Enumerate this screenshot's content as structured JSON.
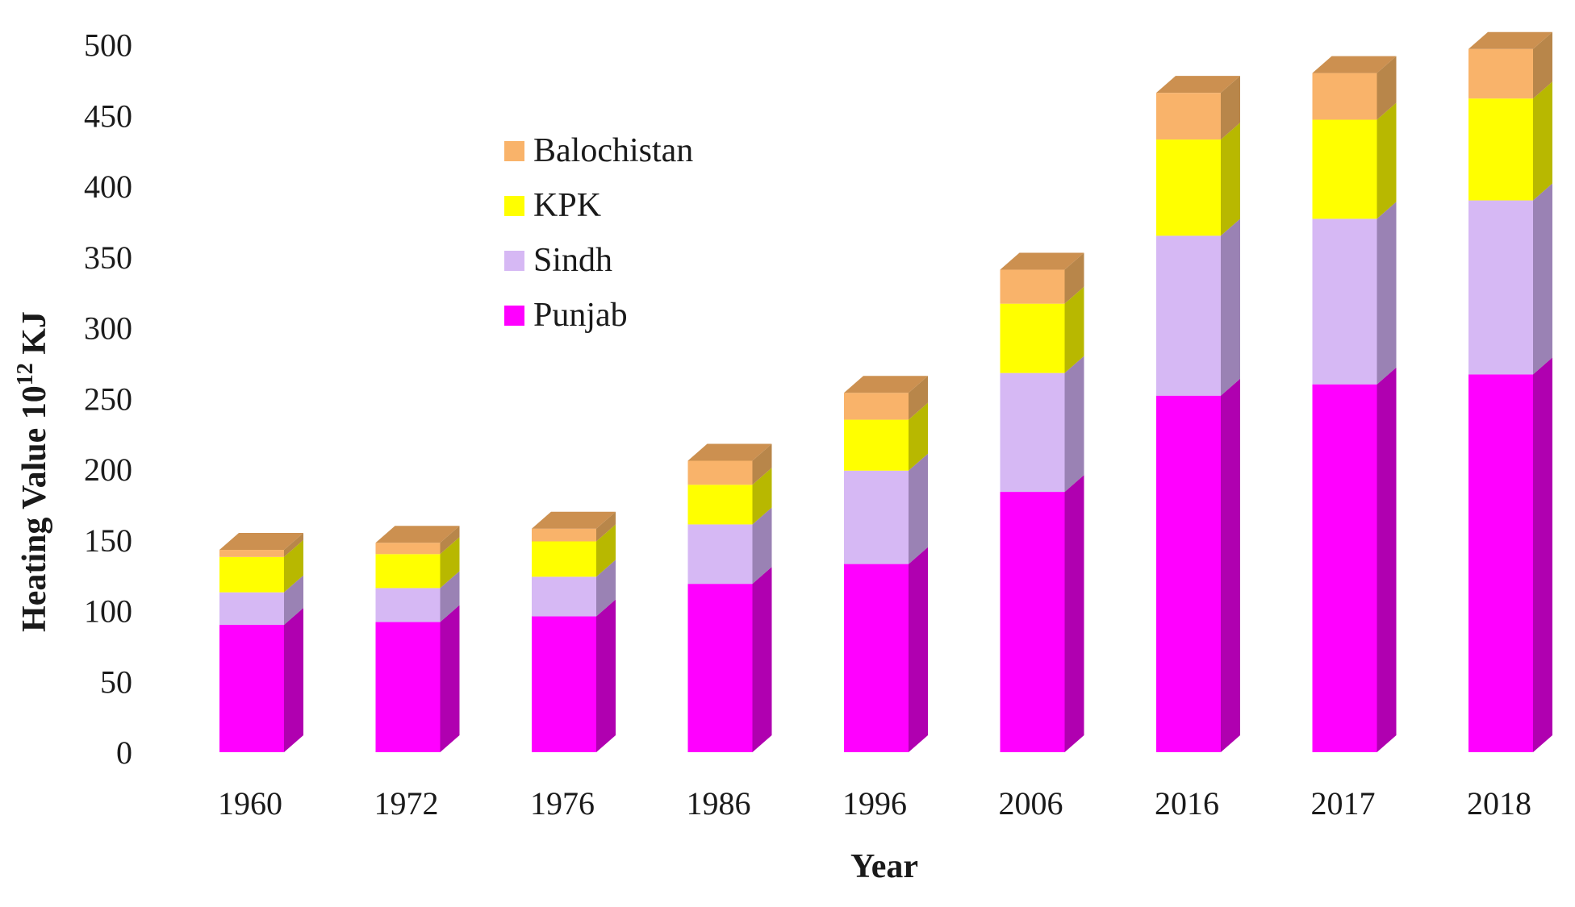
{
  "chart_data": {
    "type": "bar",
    "stacked": true,
    "style": "3d-column",
    "categories": [
      "1960",
      "1972",
      "1976",
      "1986",
      "1996",
      "2006",
      "2016",
      "2017",
      "2018"
    ],
    "series": [
      {
        "name": "Punjab",
        "color": "#ff00ff",
        "side": "#b000b0",
        "top": "#e000e0",
        "values": [
          90,
          92,
          96,
          119,
          133,
          184,
          252,
          260,
          267
        ]
      },
      {
        "name": "Sindh",
        "color": "#d6b8f4",
        "side": "#9a82b4",
        "top": "#c4a6e4",
        "values": [
          23,
          24,
          28,
          42,
          66,
          84,
          113,
          117,
          123
        ]
      },
      {
        "name": "KPK",
        "color": "#ffff00",
        "side": "#b8b800",
        "top": "#e8e800",
        "values": [
          25,
          24,
          25,
          28,
          36,
          49,
          68,
          70,
          72
        ]
      },
      {
        "name": "Balochistan",
        "color": "#f9b36a",
        "side": "#b8864a",
        "top": "#cc9050",
        "values": [
          5,
          8,
          9,
          17,
          19,
          24,
          33,
          33,
          35
        ]
      }
    ],
    "ylim": [
      0,
      500
    ],
    "yticks": [
      "0",
      "50",
      "100",
      "150",
      "200",
      "250",
      "300",
      "350",
      "400",
      "450",
      "500"
    ],
    "xlabel": "Year",
    "ylabel_main": "Heating  Value 10",
    "ylabel_sup": "12",
    "ylabel_unit": " KJ",
    "legend": {
      "position": "top-left",
      "order": [
        "Balochistan",
        "KPK",
        "Sindh",
        "Punjab"
      ]
    },
    "grid": false
  }
}
